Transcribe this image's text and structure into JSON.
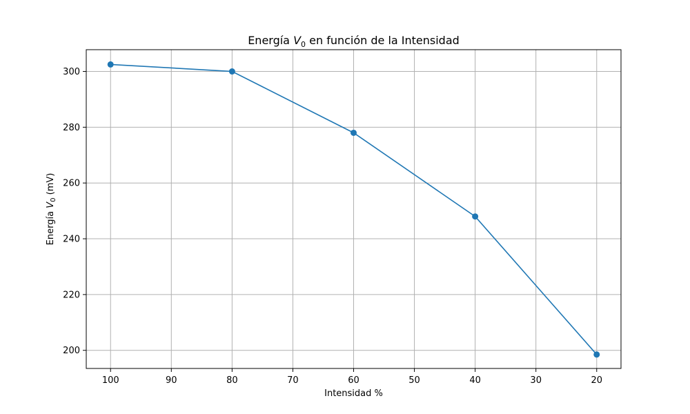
{
  "chart_data": {
    "type": "line",
    "title": {
      "prefix": "Energía ",
      "var": "V",
      "sub": "0",
      "suffix": " en función de la Intensidad"
    },
    "xlabel": "Intensidad %",
    "ylabel": {
      "prefix": "Energía ",
      "var": "V",
      "sub": "0",
      "suffix": " (mV)"
    },
    "x_inverted": true,
    "xlim": [
      104,
      16
    ],
    "ylim": [
      193.5,
      307.8
    ],
    "xticks": [
      100,
      90,
      80,
      70,
      60,
      50,
      40,
      30,
      20
    ],
    "yticks": [
      200,
      220,
      240,
      260,
      280,
      300
    ],
    "grid": true,
    "series": [
      {
        "x": [
          100,
          80,
          60,
          40,
          20
        ],
        "y": [
          302.5,
          300,
          278,
          248,
          198.5
        ],
        "color": "#1f77b4",
        "marker": "circle"
      }
    ]
  }
}
